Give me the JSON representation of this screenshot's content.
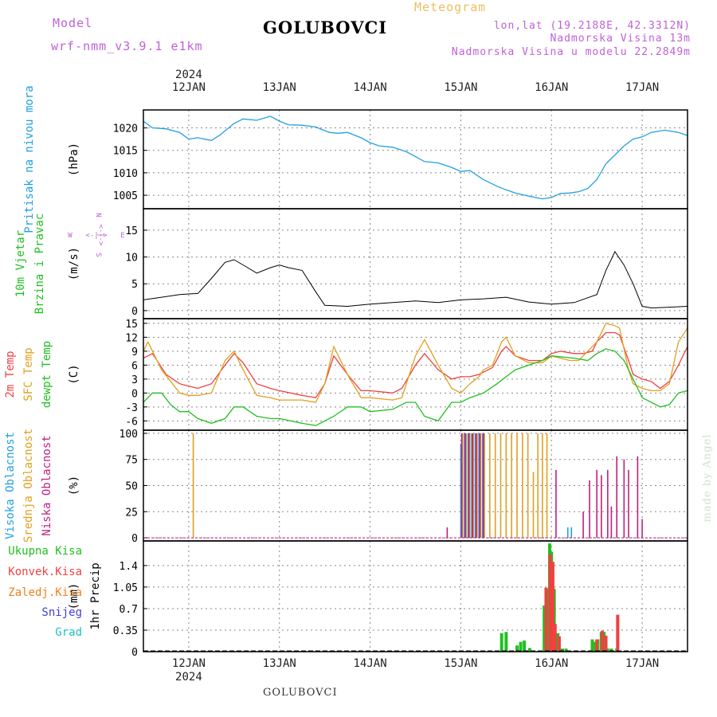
{
  "header": {
    "model_label": "Model",
    "model_name": "wrf-nmm_v3.9.1 e1km",
    "title": "GOLUBOVCI",
    "subtitle": "Meteogram",
    "lonlat": "lon,lat (19.2188E, 42.3312N)",
    "altitude": "Nadmorska Visina 13m",
    "altitude_model": "Nadmorska Visina u modelu 22.2849m"
  },
  "footer_title": "GOLUBOVCI",
  "watermark": "made by Angel",
  "time_axis": {
    "year": "2024",
    "ticks": [
      "12JAN",
      "13JAN",
      "14JAN",
      "15JAN",
      "16JAN",
      "17JAN"
    ],
    "tick_days": [
      12,
      13,
      14,
      15,
      16,
      17
    ],
    "range_days": [
      11.5,
      17.5
    ]
  },
  "colors": {
    "pressure": "#20a0e0",
    "wind_label": "#20c020",
    "t2m": "#f04040",
    "sfc": "#e0a020",
    "dewpt": "#20c020",
    "cloud_high": "#20a0e0",
    "cloud_mid": "#e0a020",
    "cloud_low": "#c02080",
    "precip_total": "#20c020",
    "precip_conv": "#f04040",
    "precip_frz": "#f08020",
    "precip_snow": "#4040e0",
    "precip_grad": "#20c0c0",
    "dir_legend": "#c060d8"
  },
  "chart_data": [
    {
      "id": "pressure",
      "type": "line",
      "ylabel_lines": [
        "Pritisak na nivou mora"
      ],
      "unit": "(hPa)",
      "ylim": [
        1002,
        1024
      ],
      "yticks": [
        1005,
        1010,
        1015,
        1020
      ],
      "grid": true,
      "series": [
        {
          "name": "Pritisak na nivou mora",
          "x": [
            11.5,
            11.6,
            11.75,
            11.9,
            12.0,
            12.1,
            12.25,
            12.35,
            12.5,
            12.6,
            12.75,
            12.9,
            13.0,
            13.1,
            13.25,
            13.4,
            13.55,
            13.65,
            13.75,
            13.9,
            14.0,
            14.1,
            14.25,
            14.4,
            14.6,
            14.75,
            14.9,
            15.0,
            15.1,
            15.25,
            15.4,
            15.5,
            15.6,
            15.75,
            15.9,
            16.0,
            16.1,
            16.2,
            16.3,
            16.4,
            16.5,
            16.6,
            16.7,
            16.8,
            16.9,
            17.0,
            17.1,
            17.25,
            17.4,
            17.5
          ],
          "y": [
            1021.5,
            1020.0,
            1019.8,
            1019.0,
            1017.5,
            1017.8,
            1017.2,
            1018.5,
            1021.0,
            1022.0,
            1021.7,
            1022.6,
            1021.5,
            1020.7,
            1020.6,
            1020.2,
            1019.0,
            1018.8,
            1019.0,
            1017.8,
            1016.7,
            1016.0,
            1015.7,
            1014.7,
            1012.5,
            1012.2,
            1011.2,
            1010.3,
            1010.5,
            1008.5,
            1007.0,
            1006.2,
            1005.5,
            1004.8,
            1004.2,
            1004.5,
            1005.4,
            1005.5,
            1005.8,
            1006.5,
            1008.5,
            1012.0,
            1014.0,
            1016.0,
            1017.5,
            1018.0,
            1019.0,
            1019.5,
            1019.0,
            1018.3
          ]
        }
      ]
    },
    {
      "id": "wind",
      "type": "line",
      "ylabel_lines": [
        "10m Vjetar",
        "Brzina i Pravac"
      ],
      "unit": "(m/s)",
      "ylim": [
        -1.5,
        19
      ],
      "yticks": [
        0,
        5,
        10,
        15
      ],
      "grid": true,
      "direction_legend": {
        "n": "N",
        "w": "W",
        "e": "E",
        "s": "S",
        "arrows": "<-|->"
      },
      "series": [
        {
          "name": "speed",
          "x": [
            11.5,
            11.7,
            11.9,
            12.0,
            12.1,
            12.25,
            12.4,
            12.5,
            12.65,
            12.75,
            12.9,
            13.0,
            13.1,
            13.25,
            13.4,
            13.5,
            13.75,
            14.0,
            14.25,
            14.5,
            14.75,
            15.0,
            15.25,
            15.5,
            15.75,
            16.0,
            16.25,
            16.5,
            16.6,
            16.7,
            16.8,
            16.9,
            17.0,
            17.1,
            17.25,
            17.5
          ],
          "y": [
            2.0,
            2.5,
            3.0,
            3.1,
            3.2,
            6.0,
            9.0,
            9.5,
            8.0,
            7.0,
            8.0,
            8.5,
            8.0,
            7.5,
            3.5,
            1.0,
            0.8,
            1.2,
            1.5,
            1.8,
            1.5,
            2.0,
            2.2,
            2.5,
            1.6,
            1.2,
            1.5,
            3.0,
            7.5,
            11.0,
            8.5,
            5.0,
            0.8,
            0.5,
            0.6,
            0.8
          ]
        }
      ]
    },
    {
      "id": "temperature",
      "type": "line",
      "ylabel_lines": [
        "2m Temp",
        "SFC Temp",
        "dewpt Temp"
      ],
      "unit": "(C)",
      "ylim": [
        -8,
        16
      ],
      "yticks": [
        -6,
        -3,
        0,
        3,
        6,
        9,
        12,
        15
      ],
      "grid": true,
      "series": [
        {
          "name": "2m Temp",
          "x": [
            11.5,
            11.6,
            11.75,
            11.9,
            12.0,
            12.1,
            12.25,
            12.4,
            12.5,
            12.6,
            12.75,
            12.9,
            13.0,
            13.25,
            13.4,
            13.5,
            13.6,
            13.75,
            13.9,
            14.0,
            14.25,
            14.35,
            14.5,
            14.6,
            14.75,
            14.9,
            15.0,
            15.1,
            15.2,
            15.25,
            15.35,
            15.45,
            15.5,
            15.6,
            15.75,
            15.9,
            16.0,
            16.1,
            16.25,
            16.35,
            16.45,
            16.5,
            16.6,
            16.7,
            16.75,
            16.85,
            16.9,
            17.0,
            17.1,
            17.2,
            17.3,
            17.4,
            17.5
          ],
          "y": [
            7.5,
            8.5,
            4.0,
            2.0,
            1.5,
            1.0,
            2.0,
            6.0,
            8.5,
            6.5,
            2.0,
            1.0,
            0.5,
            -0.5,
            -1.0,
            2.0,
            8.0,
            4.0,
            0.5,
            0.5,
            0.0,
            1.0,
            6.0,
            8.5,
            5.0,
            3.0,
            3.5,
            3.5,
            4.0,
            4.5,
            5.5,
            9.0,
            10.0,
            8.0,
            7.0,
            7.0,
            8.5,
            9.0,
            8.5,
            8.5,
            9.0,
            11.0,
            13.0,
            13.0,
            12.5,
            7.0,
            4.0,
            3.0,
            2.5,
            1.0,
            2.5,
            6.0,
            10.0
          ]
        },
        {
          "name": "SFC Temp",
          "x": [
            11.5,
            11.55,
            11.7,
            11.9,
            12.0,
            12.1,
            12.25,
            12.4,
            12.5,
            12.6,
            12.75,
            12.9,
            13.0,
            13.25,
            13.4,
            13.5,
            13.6,
            13.75,
            13.9,
            14.0,
            14.25,
            14.35,
            14.5,
            14.6,
            14.75,
            14.9,
            15.0,
            15.1,
            15.2,
            15.25,
            15.35,
            15.45,
            15.5,
            15.6,
            15.75,
            15.9,
            16.0,
            16.1,
            16.2,
            16.3,
            16.4,
            16.5,
            16.6,
            16.7,
            16.75,
            16.85,
            16.9,
            17.0,
            17.1,
            17.2,
            17.3,
            17.4,
            17.5
          ],
          "y": [
            9.0,
            11.0,
            5.0,
            0.0,
            -0.5,
            -0.5,
            0.0,
            7.0,
            9.0,
            5.0,
            -0.5,
            -1.0,
            -1.5,
            -1.5,
            -2.0,
            2.0,
            10.0,
            4.0,
            -1.0,
            -1.0,
            -1.5,
            -1.0,
            8.0,
            11.5,
            6.0,
            1.0,
            0.0,
            2.0,
            3.5,
            5.0,
            6.0,
            11.0,
            12.0,
            8.0,
            6.5,
            6.5,
            8.0,
            7.5,
            7.0,
            7.0,
            9.0,
            11.0,
            15.0,
            14.5,
            14.0,
            5.0,
            2.0,
            1.0,
            0.5,
            0.5,
            2.0,
            11.0,
            14.0
          ]
        },
        {
          "name": "dewpt Temp",
          "x": [
            11.5,
            11.6,
            11.7,
            11.8,
            11.9,
            12.0,
            12.1,
            12.25,
            12.4,
            12.5,
            12.6,
            12.75,
            12.9,
            13.0,
            13.25,
            13.4,
            13.5,
            13.6,
            13.75,
            13.9,
            14.0,
            14.25,
            14.4,
            14.5,
            14.6,
            14.75,
            14.9,
            15.0,
            15.1,
            15.25,
            15.4,
            15.5,
            15.6,
            15.75,
            15.9,
            16.0,
            16.25,
            16.4,
            16.5,
            16.6,
            16.7,
            16.8,
            16.9,
            17.0,
            17.1,
            17.2,
            17.3,
            17.4,
            17.5
          ],
          "y": [
            -2.0,
            0.0,
            0.0,
            -2.5,
            -4.0,
            -4.0,
            -5.5,
            -6.5,
            -5.5,
            -3.0,
            -3.0,
            -5.0,
            -5.5,
            -5.5,
            -6.5,
            -7.0,
            -6.0,
            -5.0,
            -3.0,
            -3.0,
            -4.0,
            -3.5,
            -2.0,
            -2.0,
            -5.0,
            -6.0,
            -2.0,
            -2.0,
            -1.0,
            0.0,
            2.0,
            3.5,
            5.0,
            6.0,
            7.0,
            8.0,
            7.5,
            7.0,
            8.5,
            9.5,
            9.0,
            7.0,
            3.0,
            -1.0,
            -2.0,
            -3.0,
            -2.5,
            0.0,
            0.5
          ]
        }
      ]
    },
    {
      "id": "cloud",
      "type": "bar",
      "ylabel_lines": [
        "Visoka Oblacnost",
        "Srednja Oblacnost",
        "Niska Oblacnost"
      ],
      "unit": "(%)",
      "ylim": [
        -3,
        103
      ],
      "yticks": [
        0,
        25,
        50,
        75,
        100
      ],
      "grid": true,
      "series": [
        {
          "name": "Visoka Oblacnost",
          "x": [
            15.0,
            15.04,
            15.08,
            15.12,
            15.16,
            15.2,
            15.24,
            16.18,
            16.22
          ],
          "y": [
            90,
            100,
            100,
            100,
            100,
            100,
            100,
            10,
            10
          ]
        },
        {
          "name": "Srednja Oblacnost",
          "x": [
            12.05,
            15.02,
            15.06,
            15.1,
            15.14,
            15.18,
            15.22,
            15.26,
            15.32,
            15.38,
            15.44,
            15.5,
            15.56,
            15.62,
            15.68,
            15.74,
            15.8,
            15.85,
            15.9,
            15.95
          ],
          "y": [
            100,
            100,
            100,
            100,
            100,
            100,
            100,
            100,
            100,
            100,
            100,
            100,
            100,
            100,
            100,
            100,
            63,
            100,
            100,
            100
          ]
        },
        {
          "name": "Niska Oblacnost",
          "x": [
            14.85,
            15.01,
            15.05,
            15.09,
            15.13,
            15.17,
            15.21,
            15.25,
            16.05,
            16.35,
            16.42,
            16.5,
            16.55,
            16.62,
            16.66,
            16.72,
            16.8,
            16.85,
            16.95,
            17.0
          ],
          "y": [
            10,
            100,
            100,
            100,
            100,
            100,
            100,
            100,
            65,
            25,
            55,
            65,
            60,
            65,
            30,
            78,
            75,
            65,
            78,
            18
          ]
        }
      ]
    },
    {
      "id": "precip",
      "type": "bar",
      "ylabel_lines": [
        "1hr Precip"
      ],
      "unit": "(mm)",
      "ylim": [
        0,
        1.8
      ],
      "yticks": [
        0,
        0.35,
        0.7,
        1.05,
        1.4
      ],
      "ytick_labels": [
        "0",
        "0.35",
        "0.7",
        "1.05",
        "1.4"
      ],
      "grid": true,
      "legend": [
        "Ukupna Kisa",
        "Konvek.Kisa",
        "Zaledj.Kisa",
        "Snijeg",
        "Grad"
      ],
      "series": [
        {
          "name": "Ukupna Kisa",
          "x": [
            15.45,
            15.5,
            15.62,
            15.66,
            15.7,
            15.76,
            15.92,
            15.96,
            15.98,
            16.0,
            16.03,
            16.07,
            16.12,
            16.16,
            16.45,
            16.48,
            16.51,
            16.55,
            16.58,
            16.62,
            16.66,
            16.72
          ],
          "y": [
            0.3,
            0.32,
            0.1,
            0.16,
            0.18,
            0.06,
            0.75,
            1.02,
            1.76,
            1.62,
            1.02,
            0.3,
            0.05,
            0.05,
            0.2,
            0.16,
            0.2,
            0.32,
            0.32,
            0.05,
            0.05,
            0.05
          ]
        },
        {
          "name": "Konvek.Kisa",
          "x": [
            15.94,
            15.985,
            16.015,
            16.04,
            16.085,
            16.5,
            16.56,
            16.6,
            16.73
          ],
          "y": [
            1.04,
            1.58,
            1.46,
            0.45,
            0.25,
            0.2,
            0.34,
            0.26,
            0.6
          ]
        }
      ]
    }
  ]
}
